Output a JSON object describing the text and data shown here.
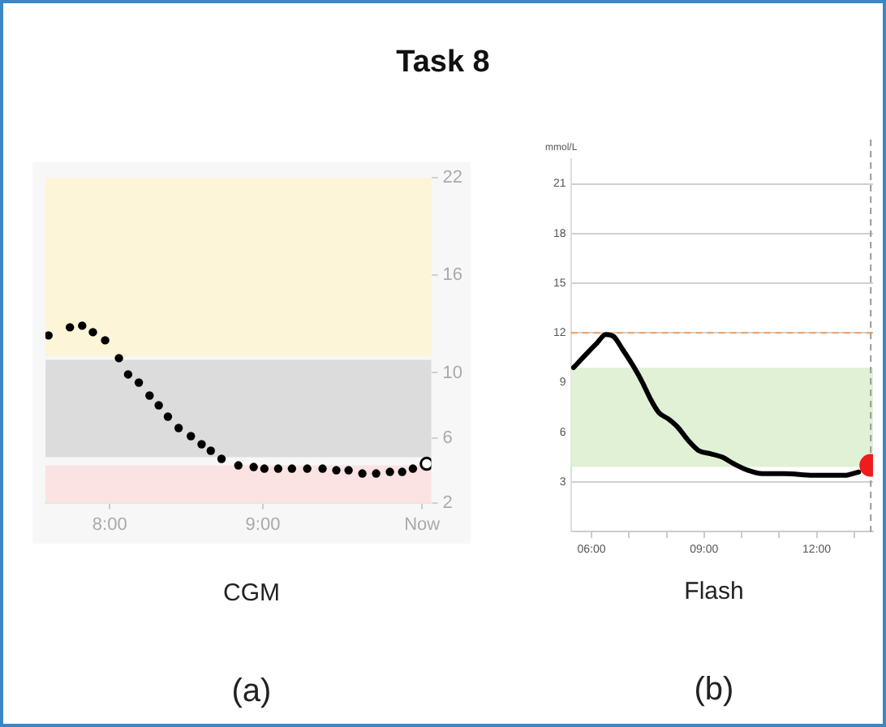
{
  "chart_data": [
    {
      "type": "scatter",
      "title": "Task 8",
      "xlabel": "CGM",
      "annotations": [
        "(a)"
      ],
      "x": [
        7.6,
        7.74,
        7.82,
        7.89,
        7.97,
        8.06,
        8.12,
        8.19,
        8.26,
        8.32,
        8.38,
        8.45,
        8.53,
        8.6,
        8.66,
        8.73,
        8.84,
        8.94,
        9.01,
        9.1,
        9.19,
        9.29,
        9.39,
        9.48,
        9.56,
        9.65,
        9.74,
        9.83,
        9.91,
        9.98
      ],
      "series": [
        {
          "color": "#000000",
          "marker": "circle",
          "values": [
            12.3,
            12.8,
            12.9,
            12.5,
            12.0,
            10.9,
            9.9,
            9.4,
            8.6,
            8.0,
            7.3,
            6.6,
            6.1,
            5.6,
            5.2,
            4.7,
            4.3,
            4.2,
            4.1,
            4.1,
            4.1,
            4.1,
            4.1,
            4.0,
            4.0,
            3.8,
            3.8,
            3.9,
            3.9,
            4.1
          ]
        },
        {
          "type": "scatter",
          "color": "#ffffff",
          "marker": "circle",
          "x": [
            10.07
          ],
          "values": [
            4.4
          ]
        }
      ],
      "xlim": [
        7.58,
        10.1
      ],
      "xticks": [
        {
          "value": 8,
          "label": "8:00"
        },
        {
          "value": 9,
          "label": "9:00"
        },
        {
          "value": 10.04,
          "label": "Now"
        }
      ],
      "ylim": [
        2,
        22
      ],
      "yticks": [
        2,
        6,
        10,
        16,
        22
      ],
      "grid": false,
      "bands": [
        {
          "axis": "y",
          "from": 11,
          "to": 22,
          "color": "#fcf5d8"
        },
        {
          "axis": "y",
          "from": 4.8,
          "to": 10.8,
          "color": "#dcdcdc"
        },
        {
          "axis": "y",
          "from": 2,
          "to": 4.3,
          "color": "#fbe3e3"
        }
      ]
    },
    {
      "type": "line",
      "xlabel": "Flash",
      "ylabel": "mmol/L",
      "annotations": [
        "(b)"
      ],
      "x": [
        5.52,
        5.85,
        6.15,
        6.38,
        6.58,
        6.83,
        7.14,
        7.36,
        7.55,
        7.79,
        8.05,
        8.3,
        8.58,
        8.85,
        9.18,
        9.48,
        9.79,
        10.17,
        10.55,
        11.15,
        11.91,
        12.74,
        13.12
      ],
      "series": [
        {
          "color": "#000000",
          "marker": "none",
          "values": [
            9.9,
            10.7,
            11.4,
            11.9,
            11.8,
            11.0,
            9.9,
            9.0,
            8.1,
            7.2,
            6.8,
            6.3,
            5.5,
            4.9,
            4.7,
            4.5,
            4.1,
            3.7,
            3.5,
            3.5,
            3.4,
            3.4,
            3.6
          ]
        },
        {
          "type": "scatter",
          "color": "#ee1c1c",
          "marker": "circle",
          "x": [
            13.44
          ],
          "values": [
            4
          ]
        }
      ],
      "xlim": [
        5.45,
        13.5
      ],
      "xticks": [
        {
          "value": 6,
          "label": "06:00"
        },
        {
          "value": 7,
          "label": null
        },
        {
          "value": 8,
          "label": null
        },
        {
          "value": 9,
          "label": "09:00"
        },
        {
          "value": 10,
          "label": null
        },
        {
          "value": 11,
          "label": null
        },
        {
          "value": 12,
          "label": "12:00"
        },
        {
          "value": 13,
          "label": null
        }
      ],
      "ylim": [
        0,
        22.5
      ],
      "yticks": [
        3,
        6,
        9,
        12,
        15,
        18,
        21
      ],
      "grid": "y",
      "ref_lines": [
        {
          "axis": "y",
          "value": 12,
          "color": "#f0a060",
          "line_style": "dashed"
        },
        {
          "axis": "x",
          "value": 13.44,
          "color": "#999999",
          "line_style": "dashed"
        }
      ],
      "bands": [
        {
          "axis": "y",
          "from": 3.9,
          "to": 9.9,
          "color": "#e0f1d6"
        }
      ]
    }
  ]
}
